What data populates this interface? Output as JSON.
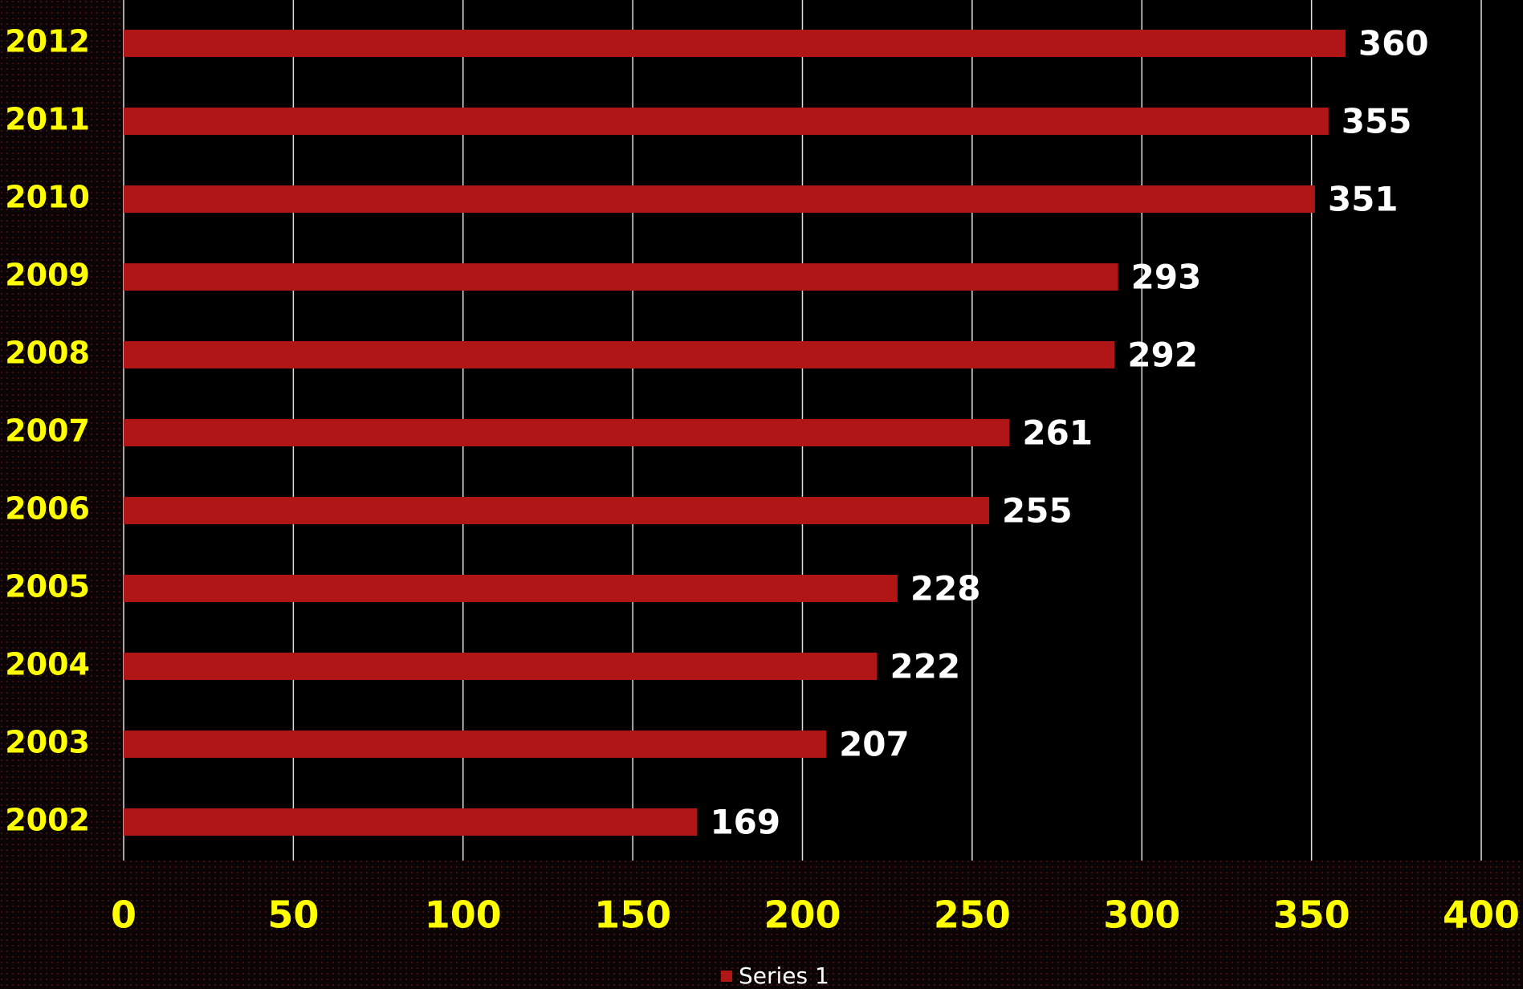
{
  "chart_data": {
    "type": "bar",
    "orientation": "horizontal",
    "categories": [
      "2002",
      "2003",
      "2004",
      "2005",
      "2006",
      "2007",
      "2008",
      "2009",
      "2010",
      "2011",
      "2012"
    ],
    "series": [
      {
        "name": "Series 1",
        "color": "#b01616",
        "values": [
          169,
          207,
          222,
          228,
          255,
          261,
          292,
          293,
          351,
          355,
          360
        ]
      }
    ],
    "xlim": [
      0,
      400
    ],
    "xticks": [
      0,
      50,
      100,
      150,
      200,
      250,
      300,
      350,
      400
    ],
    "grid": true,
    "legend": "bottom"
  }
}
